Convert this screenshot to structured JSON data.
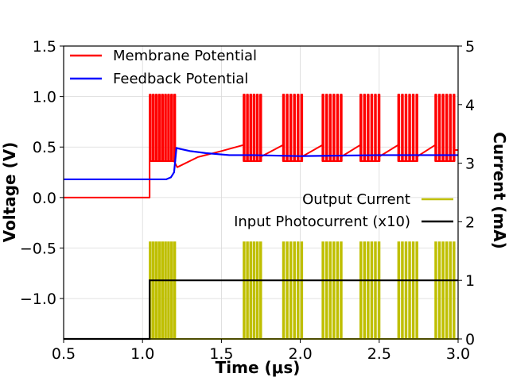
{
  "chart_data": {
    "type": "line",
    "xlabel": "Time (μs)",
    "ylabel_left": "Voltage (V)",
    "ylabel_right": "Current (mA)",
    "xlim": [
      0.5,
      3.0
    ],
    "ylim_left": [
      -1.4,
      1.5
    ],
    "ylim_right": [
      0,
      5
    ],
    "x_ticks": [
      "0.5",
      "1.0",
      "1.5",
      "2.0",
      "2.5",
      "3.0"
    ],
    "x_tick_values": [
      0.5,
      1.0,
      1.5,
      2.0,
      2.5,
      3.0
    ],
    "y_left_ticks": [
      "1.5",
      "1.0",
      "0.5",
      "0.0",
      "−0.5",
      "−1.0"
    ],
    "y_left_tick_values": [
      1.5,
      1.0,
      0.5,
      0.0,
      -0.5,
      -1.0
    ],
    "y_right_ticks": [
      "5",
      "4",
      "3",
      "2",
      "1",
      "0"
    ],
    "y_right_tick_values": [
      5,
      4,
      3,
      2,
      1,
      0
    ],
    "grid": true,
    "legend_left": {
      "placement": "top-left",
      "entries": [
        {
          "name": "Membrane Potential",
          "color": "#ff0000"
        },
        {
          "name": "Feedback Potential",
          "color": "#0000ff"
        }
      ]
    },
    "legend_right": {
      "placement": "center-right",
      "entries": [
        {
          "name": "Output Current",
          "color": "#bfbf00"
        },
        {
          "name": "Input Photocurrent (x10)",
          "color": "#000000"
        }
      ]
    },
    "bursts": [
      {
        "start": 1.045,
        "end": 1.2,
        "spikes": 9
      },
      {
        "start": 1.64,
        "end": 1.745,
        "spikes": 6
      },
      {
        "start": 1.89,
        "end": 2.005,
        "spikes": 6
      },
      {
        "start": 2.14,
        "end": 2.255,
        "spikes": 6
      },
      {
        "start": 2.38,
        "end": 2.495,
        "spikes": 6
      },
      {
        "start": 2.62,
        "end": 2.735,
        "spikes": 6
      },
      {
        "start": 2.855,
        "end": 2.97,
        "spikes": 6
      }
    ],
    "series": [
      {
        "name": "Membrane Potential",
        "axis": "left",
        "baseline": 0.0,
        "spike_peak": 1.02,
        "spike_trough": 0.36,
        "recovery_points": [
          [
            1.2,
            0.36
          ],
          [
            1.22,
            0.3
          ],
          [
            1.35,
            0.4
          ],
          [
            1.5,
            0.46
          ],
          [
            1.64,
            0.52
          ],
          [
            1.745,
            0.4
          ],
          [
            1.89,
            0.52
          ],
          [
            2.005,
            0.4
          ],
          [
            2.14,
            0.52
          ],
          [
            2.255,
            0.4
          ],
          [
            2.38,
            0.52
          ],
          [
            2.495,
            0.4
          ],
          [
            2.62,
            0.52
          ],
          [
            2.735,
            0.4
          ],
          [
            2.855,
            0.52
          ],
          [
            2.97,
            0.47
          ],
          [
            3.0,
            0.47
          ]
        ]
      },
      {
        "name": "Feedback Potential",
        "axis": "left",
        "points": [
          [
            0.5,
            0.18
          ],
          [
            1.15,
            0.18
          ],
          [
            1.18,
            0.2
          ],
          [
            1.2,
            0.25
          ],
          [
            1.215,
            0.49
          ],
          [
            1.3,
            0.46
          ],
          [
            1.4,
            0.44
          ],
          [
            1.55,
            0.42
          ],
          [
            1.7,
            0.42
          ],
          [
            2.0,
            0.41
          ],
          [
            2.5,
            0.42
          ],
          [
            3.0,
            0.42
          ]
        ]
      },
      {
        "name": "Output Current",
        "axis": "right",
        "baseline": 0.0,
        "spike_peak": 1.65
      },
      {
        "name": "Input Photocurrent (x10)",
        "axis": "right",
        "points": [
          [
            0.5,
            0.0
          ],
          [
            1.045,
            0.0
          ],
          [
            1.045,
            1.0
          ],
          [
            3.0,
            1.0
          ]
        ]
      }
    ]
  }
}
